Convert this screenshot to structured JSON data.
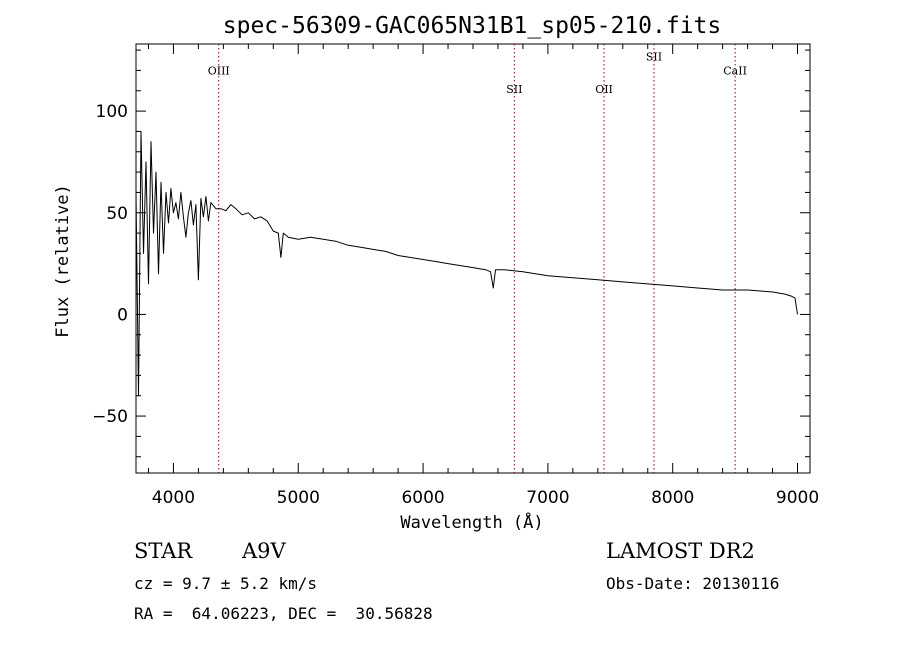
{
  "chart_data": {
    "type": "line",
    "title": "spec-56309-GAC065N31B1_sp05-210.fits",
    "xlabel": "Wavelength (Å)",
    "ylabel": "Flux (relative)",
    "xlim": [
      3700,
      9100
    ],
    "ylim": [
      -78,
      133
    ],
    "x_ticks": [
      4000,
      5000,
      6000,
      7000,
      8000,
      9000
    ],
    "y_ticks": [
      -50,
      0,
      50,
      100
    ],
    "x_tick_labels": [
      "4000",
      "5000",
      "6000",
      "7000",
      "8000",
      "9000"
    ],
    "y_tick_labels": [
      "−50",
      "0",
      "50",
      "100"
    ],
    "grid": false,
    "line_color": "#000000",
    "marker_color": "#8b0000",
    "lines": [
      {
        "label": "OIII",
        "x": 4363,
        "label_y": 118
      },
      {
        "label": "SII",
        "x": 6731,
        "label_y": 109
      },
      {
        "label": "OII",
        "x": 7450,
        "label_y": 109
      },
      {
        "label": "SII",
        "x": 7850,
        "label_y": 125
      },
      {
        "label": "CaII",
        "x": 8500,
        "label_y": 118
      }
    ],
    "series": [
      {
        "x": [
          3700,
          3720,
          3740,
          3760,
          3780,
          3800,
          3820,
          3840,
          3860,
          3880,
          3900,
          3920,
          3940,
          3960,
          3980,
          4000,
          4020,
          4040,
          4060,
          4080,
          4100,
          4120,
          4140,
          4160,
          4180,
          4200,
          4220,
          4240,
          4260,
          4280,
          4300,
          4340,
          4380,
          4420,
          4460,
          4500,
          4550,
          4600,
          4650,
          4700,
          4750,
          4800,
          4840,
          4861,
          4880,
          4920,
          5000,
          5100,
          5200,
          5300,
          5400,
          5500,
          5600,
          5700,
          5800,
          5900,
          6000,
          6100,
          6200,
          6300,
          6400,
          6500,
          6540,
          6563,
          6580,
          6650,
          6800,
          7000,
          7200,
          7400,
          7600,
          7800,
          8000,
          8200,
          8400,
          8600,
          8800,
          8900,
          8950,
          8980,
          9000
        ],
        "y": [
          60,
          -40,
          90,
          30,
          75,
          15,
          85,
          40,
          70,
          20,
          65,
          30,
          60,
          45,
          62,
          50,
          55,
          47,
          60,
          48,
          38,
          50,
          56,
          44,
          54,
          17,
          57,
          48,
          58,
          46,
          55,
          52,
          52,
          51,
          54,
          52,
          49,
          50,
          47,
          48,
          46,
          41,
          40,
          28,
          40,
          38,
          37,
          38,
          37,
          36,
          34,
          33,
          32,
          31,
          29,
          28,
          27,
          26,
          25,
          24,
          23,
          22,
          21,
          13,
          22,
          22,
          21,
          19,
          18,
          17,
          16,
          15,
          14,
          13,
          12,
          12,
          11,
          10,
          9,
          8,
          0
        ]
      }
    ]
  },
  "annotations": {
    "object_class": "STAR",
    "subclass": "A9V",
    "survey": "LAMOST DR2",
    "cz": "cz = 9.7 ± 5.2 km/s",
    "obs_date": "Obs-Date: 20130116",
    "coords": "RA =  64.06223, DEC =  30.56828"
  }
}
